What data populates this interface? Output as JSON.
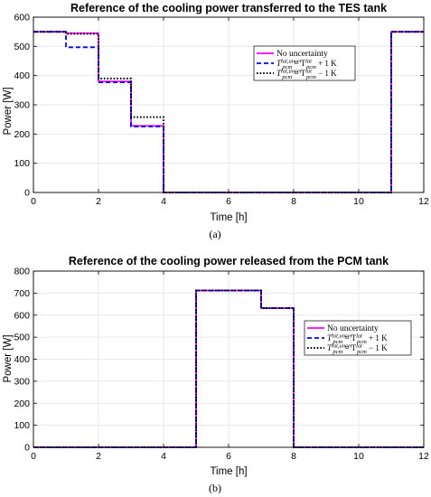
{
  "chart_data": [
    {
      "panel": "(a)",
      "type": "line",
      "title": "Reference of the cooling power transferred to the TES tank",
      "xlabel": "Time [h]",
      "ylabel": "Power [W]",
      "xlim": [
        0,
        12
      ],
      "ylim": [
        0,
        600
      ],
      "xticks": [
        "0",
        "2",
        "4",
        "6",
        "8",
        "10",
        "12"
      ],
      "yticks": [
        "0",
        "100",
        "200",
        "300",
        "400",
        "500",
        "600"
      ],
      "grid": true,
      "legend_position": "upper right",
      "legend": [
        {
          "pre": "No uncertainty",
          "sub": "",
          "post": ""
        },
        {
          "pre": "T",
          "sub": "pcm",
          "sup": "lat,uncer",
          "mid": " = T",
          "sub2": "pcm",
          "sup2": "lat",
          "post": " + 1 K"
        },
        {
          "pre": "T",
          "sub": "pcm",
          "sup": "lat,uncer",
          "mid": " = T",
          "sub2": "pcm",
          "sup2": "lat",
          "post": " − 1 K"
        }
      ],
      "series": [
        {
          "name": "No uncertainty",
          "style": "solid",
          "color": "#ff00ff",
          "x": [
            0,
            1,
            1,
            2,
            2,
            3,
            3,
            4,
            4,
            11,
            11,
            12
          ],
          "y": [
            550,
            550,
            545,
            545,
            380,
            380,
            228,
            228,
            0,
            0,
            550,
            550
          ]
        },
        {
          "name": "+1 K",
          "style": "dashed",
          "color": "#0000ff",
          "x": [
            0,
            1,
            1,
            2,
            2,
            3,
            3,
            4,
            4,
            11,
            11,
            12
          ],
          "y": [
            550,
            550,
            497,
            497,
            377,
            377,
            226,
            226,
            0,
            0,
            550,
            550
          ]
        },
        {
          "name": "-1 K",
          "style": "dotted",
          "color": "#000000",
          "x": [
            0,
            1,
            1,
            2,
            2,
            3,
            3,
            4,
            4,
            11,
            11,
            12
          ],
          "y": [
            550,
            550,
            543,
            543,
            390,
            390,
            258,
            258,
            0,
            0,
            550,
            550
          ]
        }
      ]
    },
    {
      "panel": "(b)",
      "type": "line",
      "title": "Reference of the cooling power released from the PCM tank",
      "xlabel": "Time [h]",
      "ylabel": "Power [W]",
      "xlim": [
        0,
        12
      ],
      "ylim": [
        0,
        800
      ],
      "xticks": [
        "0",
        "2",
        "4",
        "6",
        "8",
        "10",
        "12"
      ],
      "yticks": [
        "0",
        "100",
        "200",
        "300",
        "400",
        "500",
        "600",
        "700",
        "800"
      ],
      "grid": true,
      "legend_position": "center right",
      "legend": [
        {
          "pre": "No uncertainty",
          "sub": "",
          "post": ""
        },
        {
          "pre": "T",
          "sub": "pcm",
          "sup": "lat,uncer",
          "mid": " = T",
          "sub2": "pcm",
          "sup2": "lat",
          "post": " + 1 K"
        },
        {
          "pre": "T",
          "sub": "pcm",
          "sup": "lat,uncer",
          "mid": " = T",
          "sub2": "pcm",
          "sup2": "lat",
          "post": " − 1 K"
        }
      ],
      "series": [
        {
          "name": "No uncertainty",
          "style": "solid",
          "color": "#ff00ff",
          "x": [
            0,
            5,
            5,
            7,
            7,
            8,
            8,
            12
          ],
          "y": [
            0,
            0,
            712,
            712,
            632,
            632,
            0,
            0
          ]
        },
        {
          "name": "+1 K",
          "style": "dashed",
          "color": "#0000ff",
          "x": [
            0,
            5,
            5,
            7,
            7,
            8,
            8,
            12
          ],
          "y": [
            0,
            0,
            712,
            712,
            632,
            632,
            0,
            0
          ]
        },
        {
          "name": "-1 K",
          "style": "dotted",
          "color": "#000000",
          "x": [
            0,
            5,
            5,
            7,
            7,
            8,
            8,
            12
          ],
          "y": [
            0,
            0,
            712,
            712,
            632,
            632,
            0,
            0
          ]
        }
      ]
    }
  ]
}
